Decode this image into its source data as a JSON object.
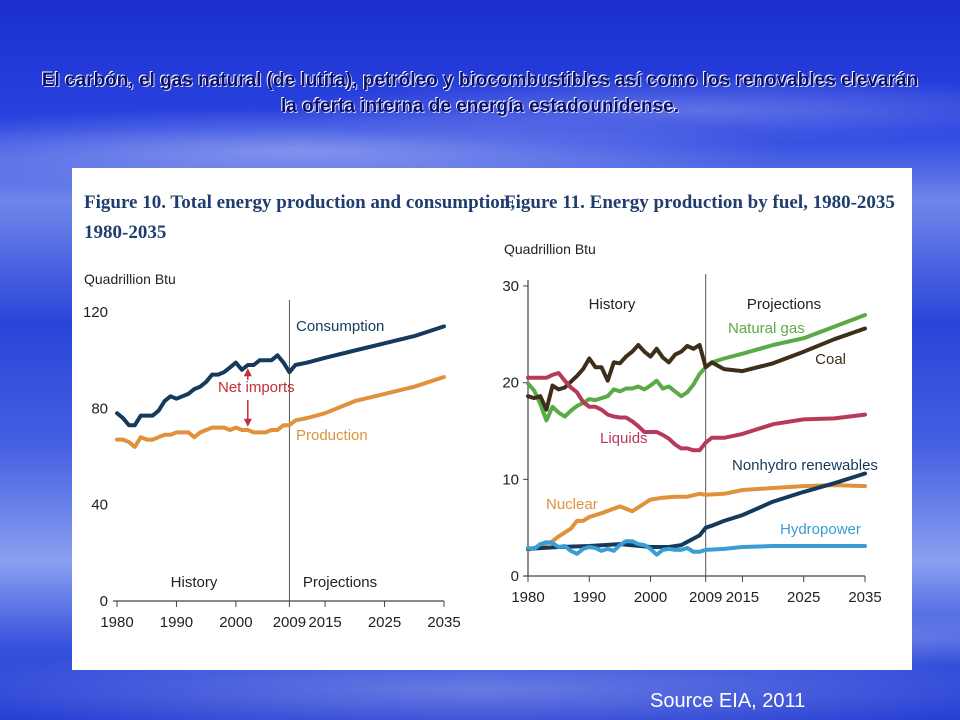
{
  "slide": {
    "title": "El carbón, el gas natural (de lutita), petróleo y biocombustibles así como los renovables elevarán la oferta interna de energía estadounidense.",
    "source": "Source EIA, 2011"
  },
  "colors": {
    "consumption": "#153a5c",
    "production": "#e0913c",
    "net_imports": "#c0303a",
    "natural_gas": "#5aaa46",
    "coal": "#3e2e1a",
    "liquids": "#b83a5a",
    "nuclear": "#e0913c",
    "nonhydro": "#153a5c",
    "hydro": "#3a9ed4"
  },
  "chart_data": [
    {
      "type": "line",
      "title": "Figure 10. Total energy production and consumption, 1980-2035",
      "unit_label": "Quadrillion Btu",
      "xlim": [
        1980,
        2035
      ],
      "ylim": [
        0,
        120
      ],
      "x_ticks": [
        1980,
        1990,
        2000,
        2009,
        2015,
        2025,
        2035
      ],
      "y_ticks": [
        0,
        40,
        80,
        120
      ],
      "divider_x": 2009,
      "region_labels": {
        "left": "History",
        "right": "Projections"
      },
      "annotation": "Net imports",
      "series": [
        {
          "name": "Consumption",
          "x": [
            1980,
            1981,
            1982,
            1983,
            1984,
            1985,
            1986,
            1987,
            1988,
            1989,
            1990,
            1991,
            1992,
            1993,
            1994,
            1995,
            1996,
            1997,
            1998,
            1999,
            2000,
            2001,
            2002,
            2003,
            2004,
            2005,
            2006,
            2007,
            2008,
            2009,
            2010,
            2012,
            2015,
            2020,
            2025,
            2030,
            2035
          ],
          "y": [
            78,
            76,
            73,
            73,
            77,
            77,
            77,
            79,
            83,
            85,
            84,
            85,
            86,
            88,
            89,
            91,
            94,
            94,
            95,
            97,
            99,
            96,
            98,
            98,
            100,
            100,
            100,
            102,
            99,
            95,
            98,
            99,
            101,
            104,
            107,
            110,
            114
          ]
        },
        {
          "name": "Production",
          "x": [
            1980,
            1981,
            1982,
            1983,
            1984,
            1985,
            1986,
            1987,
            1988,
            1989,
            1990,
            1991,
            1992,
            1993,
            1994,
            1995,
            1996,
            1997,
            1998,
            1999,
            2000,
            2001,
            2002,
            2003,
            2004,
            2005,
            2006,
            2007,
            2008,
            2009,
            2010,
            2012,
            2015,
            2020,
            2025,
            2030,
            2035
          ],
          "y": [
            67,
            67,
            66,
            64,
            68,
            67,
            67,
            68,
            69,
            69,
            70,
            70,
            70,
            68,
            70,
            71,
            72,
            72,
            72,
            71,
            72,
            71,
            71,
            70,
            70,
            70,
            71,
            71,
            73,
            73,
            75,
            76,
            78,
            83,
            86,
            89,
            93
          ]
        }
      ]
    },
    {
      "type": "line",
      "title": "Figure 11. Energy production by fuel, 1980-2035",
      "unit_label": "Quadrillion Btu",
      "xlim": [
        1980,
        2035
      ],
      "ylim": [
        0,
        30
      ],
      "x_ticks": [
        1980,
        1990,
        2000,
        2009,
        2015,
        2025,
        2035
      ],
      "y_ticks": [
        0,
        10,
        20,
        30
      ],
      "divider_x": 2009,
      "region_labels": {
        "left": "History",
        "right": "Projections"
      },
      "series": [
        {
          "name": "Natural gas",
          "x": [
            1980,
            1981,
            1982,
            1983,
            1984,
            1985,
            1986,
            1987,
            1988,
            1989,
            1990,
            1991,
            1992,
            1993,
            1994,
            1995,
            1996,
            1997,
            1998,
            1999,
            2000,
            2001,
            2002,
            2003,
            2004,
            2005,
            2006,
            2007,
            2008,
            2009,
            2010,
            2012,
            2015,
            2020,
            2025,
            2030,
            2035
          ],
          "y": [
            19.9,
            19.2,
            17.8,
            16.1,
            17.5,
            16.9,
            16.5,
            17.1,
            17.6,
            17.9,
            18.3,
            18.2,
            18.4,
            18.6,
            19.3,
            19.1,
            19.4,
            19.4,
            19.6,
            19.3,
            19.7,
            20.2,
            19.4,
            19.6,
            19.1,
            18.6,
            19.0,
            19.8,
            20.9,
            21.6,
            22.1,
            22.5,
            23.0,
            23.9,
            24.6,
            25.8,
            27.0
          ]
        },
        {
          "name": "Coal",
          "x": [
            1980,
            1981,
            1982,
            1983,
            1984,
            1985,
            1986,
            1987,
            1988,
            1989,
            1990,
            1991,
            1992,
            1993,
            1994,
            1995,
            1996,
            1997,
            1998,
            1999,
            2000,
            2001,
            2002,
            2003,
            2004,
            2005,
            2006,
            2007,
            2008,
            2009,
            2010,
            2012,
            2015,
            2020,
            2025,
            2030,
            2035
          ],
          "y": [
            18.6,
            18.4,
            18.6,
            17.2,
            19.7,
            19.3,
            19.5,
            20.1,
            20.7,
            21.4,
            22.5,
            21.6,
            21.6,
            20.2,
            22.1,
            22.0,
            22.7,
            23.2,
            23.9,
            23.2,
            22.7,
            23.5,
            22.6,
            22.1,
            22.9,
            23.2,
            23.8,
            23.5,
            23.9,
            21.6,
            22.1,
            21.4,
            21.2,
            22.0,
            23.2,
            24.5,
            25.6
          ]
        },
        {
          "name": "Liquids",
          "x": [
            1980,
            1981,
            1982,
            1983,
            1984,
            1985,
            1986,
            1987,
            1988,
            1989,
            1990,
            1991,
            1992,
            1993,
            1994,
            1995,
            1996,
            1997,
            1998,
            1999,
            2000,
            2001,
            2002,
            2003,
            2004,
            2005,
            2006,
            2007,
            2008,
            2009,
            2010,
            2012,
            2015,
            2020,
            2025,
            2030,
            2035
          ],
          "y": [
            20.5,
            20.5,
            20.5,
            20.5,
            20.8,
            21.0,
            20.2,
            19.5,
            19.0,
            18.0,
            17.5,
            17.5,
            17.2,
            16.7,
            16.5,
            16.4,
            16.4,
            16.0,
            15.5,
            14.9,
            14.9,
            14.9,
            14.6,
            14.2,
            13.6,
            13.2,
            13.2,
            13.0,
            13.0,
            13.8,
            14.3,
            14.3,
            14.7,
            15.7,
            16.2,
            16.3,
            16.7
          ]
        },
        {
          "name": "Nuclear",
          "x": [
            1980,
            1982,
            1984,
            1985,
            1986,
            1987,
            1988,
            1989,
            1990,
            1992,
            1995,
            1997,
            1998,
            2000,
            2002,
            2004,
            2006,
            2008,
            2009,
            2012,
            2015,
            2020,
            2025,
            2030,
            2035
          ],
          "y": [
            2.7,
            3.1,
            3.6,
            4.1,
            4.5,
            4.9,
            5.7,
            5.7,
            6.1,
            6.5,
            7.2,
            6.7,
            7.1,
            7.9,
            8.1,
            8.2,
            8.2,
            8.5,
            8.4,
            8.5,
            8.9,
            9.1,
            9.3,
            9.4,
            9.3
          ]
        },
        {
          "name": "Nonhydro renewables",
          "x": [
            1980,
            1985,
            1990,
            1995,
            2000,
            2003,
            2005,
            2008,
            2009,
            2010,
            2012,
            2015,
            2020,
            2025,
            2030,
            2035
          ],
          "y": [
            2.8,
            3.0,
            3.1,
            3.3,
            3.0,
            3.0,
            3.2,
            4.2,
            5.0,
            5.2,
            5.7,
            6.3,
            7.7,
            8.7,
            9.6,
            10.6
          ]
        },
        {
          "name": "Hydropower",
          "x": [
            1980,
            1981,
            1982,
            1983,
            1984,
            1985,
            1986,
            1987,
            1988,
            1989,
            1990,
            1991,
            1992,
            1993,
            1994,
            1995,
            1996,
            1997,
            1998,
            1999,
            2000,
            2001,
            2002,
            2003,
            2004,
            2005,
            2006,
            2007,
            2008,
            2009,
            2012,
            2015,
            2020,
            2025,
            2030,
            2035
          ],
          "y": [
            2.9,
            2.8,
            3.3,
            3.5,
            3.4,
            3.0,
            3.1,
            2.6,
            2.3,
            2.8,
            3.0,
            2.9,
            2.6,
            2.8,
            2.6,
            3.2,
            3.6,
            3.6,
            3.3,
            3.2,
            2.8,
            2.2,
            2.7,
            2.8,
            2.7,
            2.7,
            2.9,
            2.5,
            2.5,
            2.7,
            2.8,
            3.0,
            3.1,
            3.1,
            3.1,
            3.1
          ]
        }
      ]
    }
  ]
}
